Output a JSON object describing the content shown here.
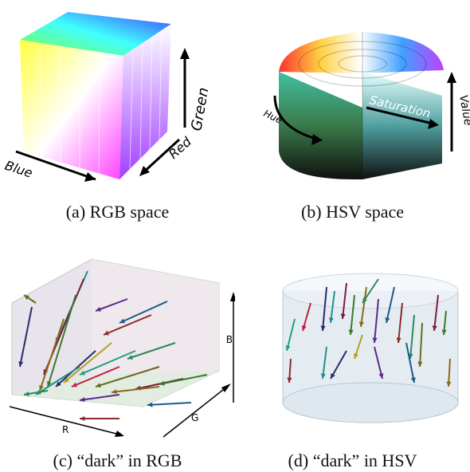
{
  "panels": [
    {
      "caption": "(a) RGB space",
      "axes": {
        "blue": "Blue",
        "red": "Red",
        "green": "Green"
      }
    },
    {
      "caption": "(b) HSV space",
      "axes": {
        "hue": "Hue",
        "saturation": "Saturation",
        "value": "Value"
      }
    },
    {
      "caption": "(c) “dark” in RGB",
      "axes": {
        "r": "R",
        "g": "G",
        "b": "B"
      }
    },
    {
      "caption": "(d) “dark” in HSV"
    }
  ],
  "arrow_colors": [
    "#2b2b6b",
    "#1f8f8f",
    "#7a1f3a",
    "#3a7a2a",
    "#8a6a1a",
    "#5a2a8a",
    "#1a5a8a",
    "#8a2a2a",
    "#2a8a5a",
    "#6a6a1a",
    "#c02040",
    "#20a080",
    "#b0a020"
  ]
}
